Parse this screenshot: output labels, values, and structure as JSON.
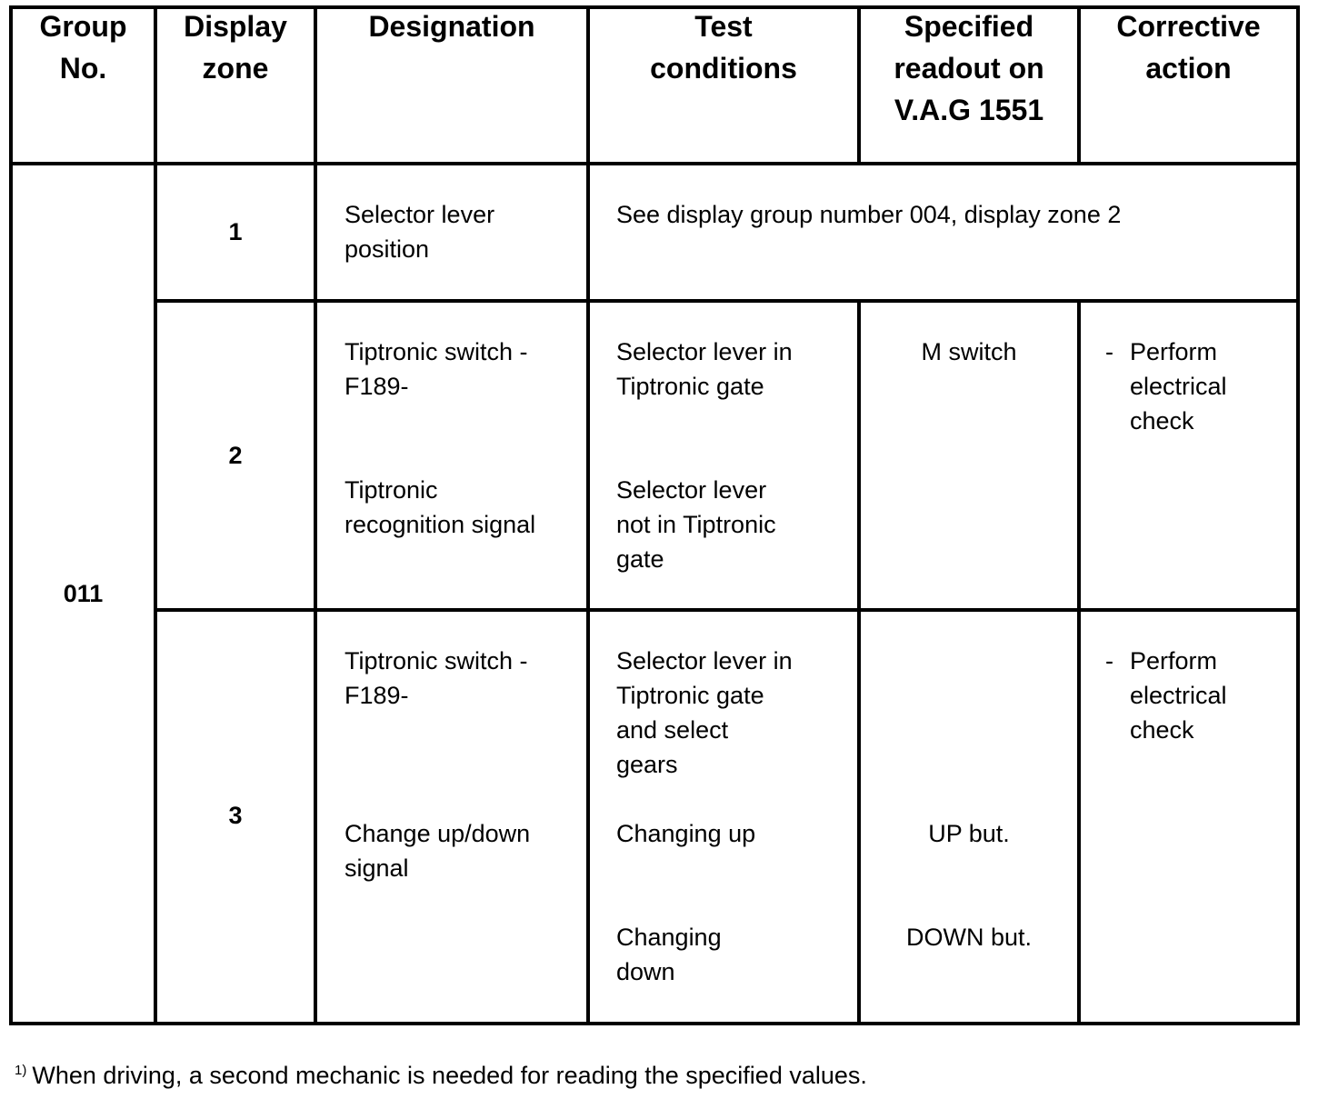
{
  "headers": [
    "Group\nNo.",
    "Display\nzone",
    "Designation",
    "Test\nconditions",
    "Specified\nreadout on\nV.A.G 1551",
    "Corrective\naction"
  ],
  "group_no": "011",
  "rows": [
    {
      "zone": "1",
      "designation": "Selector lever\nposition",
      "merged_note": "See display group number 004, display zone 2"
    },
    {
      "zone": "2",
      "designation_a": "Tiptronic switch -\nF189-",
      "designation_b": "Tiptronic\nrecognition signal",
      "test_a": "Selector lever in\nTiptronic gate",
      "test_b": "Selector lever\nnot in Tiptronic\ngate",
      "readout_a": "M switch",
      "action_dash": "-",
      "action": "Perform\nelectrical\ncheck"
    },
    {
      "zone": "3",
      "designation_a": "Tiptronic switch -\nF189-",
      "designation_b": "Change up/down\nsignal",
      "test_a": "Selector lever in\nTiptronic gate\nand select\ngears",
      "test_b": "Changing up",
      "test_c": "Changing\ndown",
      "readout_b": "UP but.",
      "readout_c": "DOWN but.",
      "action_dash": "-",
      "action": "Perform\nelectrical\ncheck"
    }
  ],
  "footnote": {
    "marker": "1)",
    "text": "When driving, a second mechanic is needed for reading the specified values."
  }
}
